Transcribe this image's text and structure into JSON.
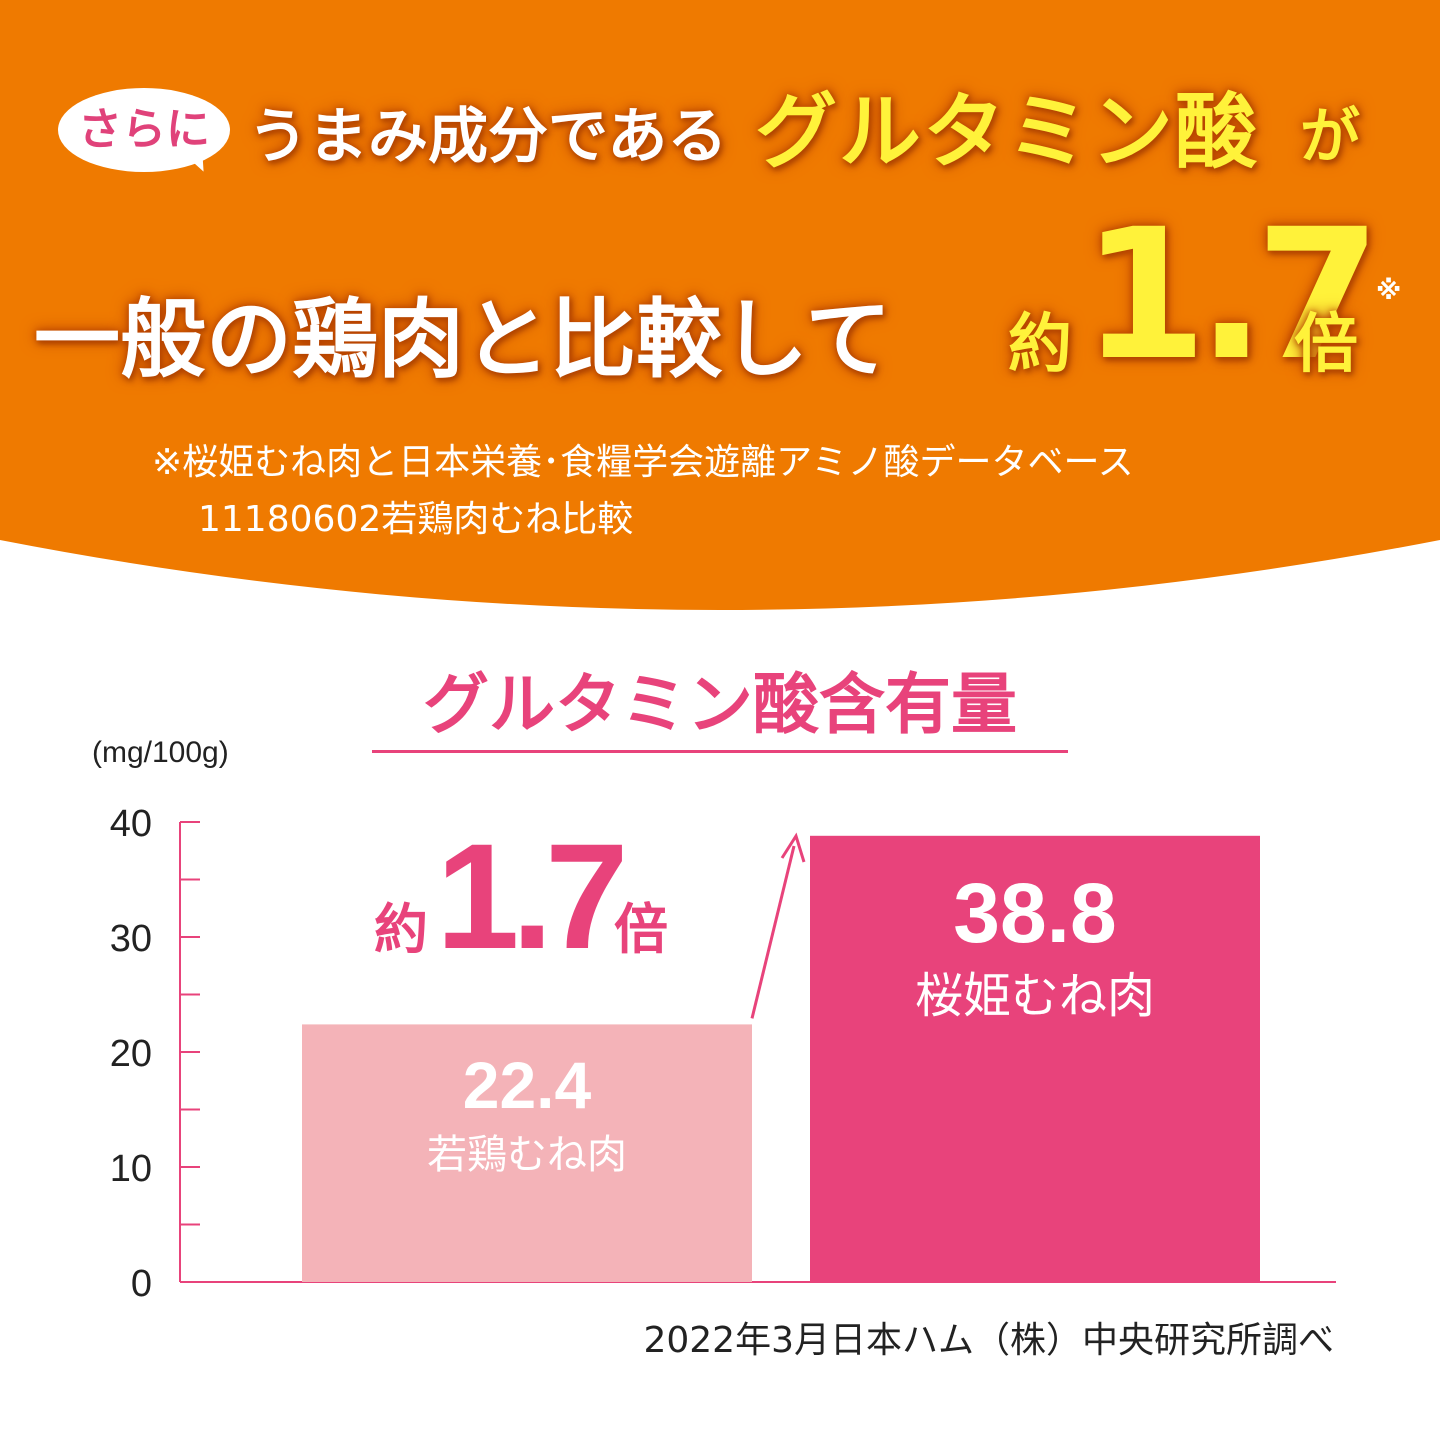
{
  "colors": {
    "banner": "#ef7a00",
    "accent": "#fff23a",
    "pink": "#e8437b",
    "pink_light": "#f4b3b8"
  },
  "header": {
    "bubble": "さらに",
    "line1_a": "うまみ成分である",
    "line1_b": "グルタミン酸",
    "line1_c": "が",
    "line2_a": "一般の鶏肉と比較して",
    "line2_b": "約",
    "line2_c": "1.7",
    "line2_d": "倍",
    "line2_mark": "※",
    "note_line1": "※桜姫むね肉と日本栄養･食糧学会遊離アミノ酸データベース",
    "note_line2": "11180602若鶏肉むね比較"
  },
  "chart_data": {
    "type": "bar",
    "title": "グルタミン酸含有量",
    "ylabel": "(mg/100g)",
    "ylim": [
      0,
      40
    ],
    "yticks": [
      0,
      10,
      20,
      30,
      40
    ],
    "categories": [
      "若鶏むね肉",
      "桜姫むね肉"
    ],
    "values": [
      22.4,
      38.8
    ],
    "value_labels": [
      "22.4",
      "38.8"
    ],
    "bar_colors": [
      "#f4b3b8",
      "#e8437b"
    ],
    "annotation": {
      "prefix": "約",
      "number": "1.7",
      "suffix": "倍"
    },
    "source": "2022年3月日本ハム（株）中央研究所調べ"
  }
}
